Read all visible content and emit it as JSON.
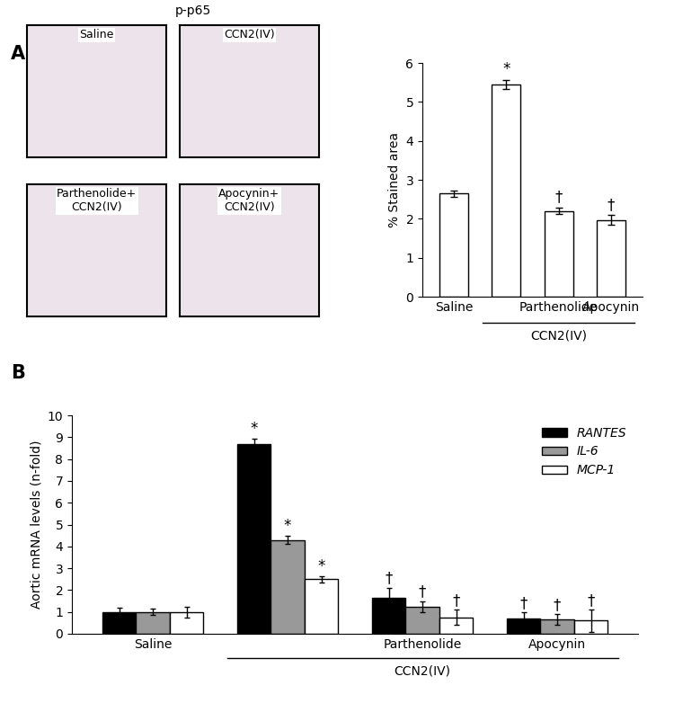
{
  "panel_labels": [
    "A",
    "B"
  ],
  "images": {
    "title": "p-p65",
    "labels": [
      "Saline",
      "CCN2(IV)",
      "Parthenolide+\nCCN2(IV)",
      "Apocynin+\nCCN2(IV)"
    ]
  },
  "chart_data": [
    {
      "type": "bar",
      "categories": [
        "Saline",
        null,
        "Parthenolide",
        "Apocynin"
      ],
      "values": [
        2.65,
        5.45,
        2.2,
        1.97
      ],
      "errors": [
        0.08,
        0.12,
        0.08,
        0.12
      ],
      "color": "#ffffff",
      "y_label": "% Stained area",
      "ylim": [
        0,
        6
      ],
      "yticks": [
        0,
        1,
        2,
        3,
        4,
        5,
        6
      ],
      "annotations": [
        {
          "x": 1,
          "text": "*"
        },
        {
          "x": 2,
          "text": "†"
        },
        {
          "x": 3,
          "text": "†"
        }
      ],
      "group_label": {
        "text": "CCN2(IV)",
        "from": 1,
        "to": 3
      }
    },
    {
      "type": "bar",
      "categories": [
        "Saline",
        null,
        "Parthenolide",
        "Apocynin"
      ],
      "series": [
        {
          "name": "RANTES",
          "color": "#000000",
          "values": [
            1.0,
            8.7,
            1.65,
            0.72
          ],
          "errors": [
            0.2,
            0.25,
            0.45,
            0.25
          ],
          "annotations": [
            {
              "x": 1,
              "text": "*"
            },
            {
              "x": 2,
              "text": "†"
            },
            {
              "x": 3,
              "text": "†"
            }
          ]
        },
        {
          "name": "IL-6",
          "color": "#999999",
          "values": [
            1.0,
            4.3,
            1.25,
            0.65
          ],
          "errors": [
            0.15,
            0.2,
            0.25,
            0.25
          ],
          "annotations": [
            {
              "x": 1,
              "text": "*"
            },
            {
              "x": 2,
              "text": "†"
            },
            {
              "x": 3,
              "text": "†"
            }
          ]
        },
        {
          "name": "MCP-1",
          "color": "#ffffff",
          "values": [
            1.0,
            2.5,
            0.75,
            0.6
          ],
          "errors": [
            0.25,
            0.15,
            0.35,
            0.5
          ],
          "annotations": [
            {
              "x": 1,
              "text": "*"
            },
            {
              "x": 2,
              "text": "†"
            },
            {
              "x": 3,
              "text": "†"
            }
          ]
        }
      ],
      "y_label": "Aortic mRNA levels (n-fold)",
      "ylim": [
        0,
        10
      ],
      "yticks": [
        0,
        1,
        2,
        3,
        4,
        5,
        6,
        7,
        8,
        9,
        10
      ],
      "legend": "upper right",
      "group_label": {
        "text": "CCN2(IV)",
        "from": 1,
        "to": 3
      }
    }
  ]
}
